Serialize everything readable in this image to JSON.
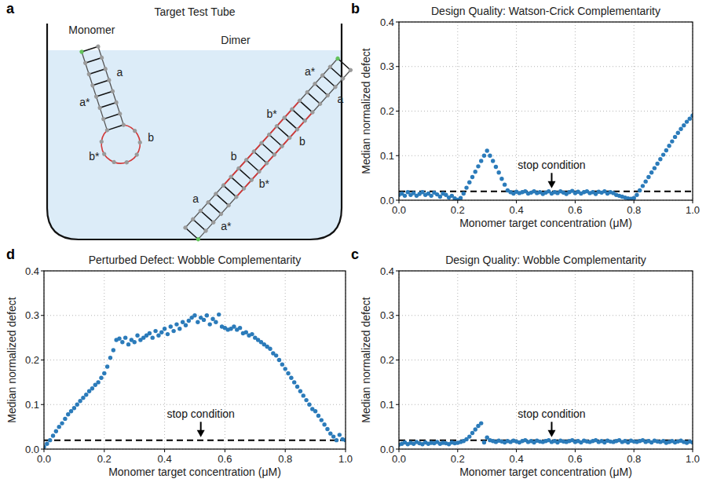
{
  "diagram": {
    "panel_label": "a",
    "title": "Target Test Tube",
    "monomer": {
      "label": "Monomer",
      "stem_labels": [
        "a*",
        "a"
      ],
      "loop_labels": [
        "b*",
        "b"
      ]
    },
    "dimer": {
      "label": "Dimer",
      "upper_labels": [
        "a",
        "b",
        "b*",
        "a*"
      ],
      "lower_labels": [
        "a*",
        "b*",
        "b",
        "a"
      ]
    }
  },
  "chart_data": [
    {
      "type": "scatter",
      "panel_label": "b",
      "title": "Design Quality: Watson-Crick Complementarity",
      "x_label": "Monomer target concentration (μM)",
      "y_label": "Median normalized defect",
      "x": [
        0,
        0.01,
        0.02,
        0.03,
        0.04,
        0.05,
        0.06,
        0.07,
        0.08,
        0.09,
        0.1,
        0.11,
        0.12,
        0.13,
        0.14,
        0.15,
        0.16,
        0.17,
        0.18,
        0.19,
        0.2,
        0.21,
        0.22,
        0.23,
        0.24,
        0.25,
        0.26,
        0.27,
        0.28,
        0.29,
        0.3,
        0.31,
        0.32,
        0.33,
        0.34,
        0.35,
        0.36,
        0.37,
        0.38,
        0.39,
        0.4,
        0.41,
        0.42,
        0.43,
        0.44,
        0.45,
        0.46,
        0.47,
        0.48,
        0.49,
        0.5,
        0.51,
        0.52,
        0.53,
        0.54,
        0.55,
        0.56,
        0.57,
        0.58,
        0.59,
        0.6,
        0.61,
        0.62,
        0.63,
        0.64,
        0.65,
        0.66,
        0.67,
        0.68,
        0.69,
        0.7,
        0.71,
        0.72,
        0.73,
        0.74,
        0.75,
        0.76,
        0.77,
        0.78,
        0.79,
        0.8,
        0.81,
        0.82,
        0.83,
        0.84,
        0.85,
        0.86,
        0.87,
        0.88,
        0.89,
        0.9,
        0.91,
        0.92,
        0.93,
        0.94,
        0.95,
        0.96,
        0.97,
        0.98,
        0.99,
        1
      ],
      "series": [
        {
          "color": "#2b7bba",
          "marker": "circle",
          "values": [
            0.012,
            0.015,
            0.01,
            0.018,
            0.012,
            0.016,
            0.01,
            0.014,
            0.018,
            0.012,
            0.015,
            0.01,
            0.017,
            0.013,
            0.008,
            0.015,
            0.012,
            0.006,
            0.01,
            0.004,
            0.001,
            0.005,
            0.015,
            0.028,
            0.04,
            0.052,
            0.064,
            0.076,
            0.088,
            0.1,
            0.111,
            0.1,
            0.088,
            0.075,
            0.062,
            0.048,
            0.035,
            0.022,
            0.018,
            0.015,
            0.019,
            0.016,
            0.018,
            0.02,
            0.015,
            0.017,
            0.02,
            0.016,
            0.018,
            0.014,
            0.017,
            0.02,
            0.015,
            0.018,
            0.016,
            0.02,
            0.017,
            0.014,
            0.018,
            0.021,
            0.016,
            0.019,
            0.015,
            0.018,
            0.02,
            0.016,
            0.018,
            0.014,
            0.019,
            0.017,
            0.02,
            0.015,
            0.018,
            0.016,
            0.012,
            0.01,
            0.008,
            0.006,
            0.004,
            0.003,
            0.005,
            0.012,
            0.022,
            0.032,
            0.042,
            0.052,
            0.062,
            0.072,
            0.082,
            0.092,
            0.102,
            0.112,
            0.122,
            0.132,
            0.142,
            0.151,
            0.16,
            0.168,
            0.176,
            0.183,
            0.19
          ]
        }
      ],
      "xlim": [
        0,
        1
      ],
      "ylim": [
        0,
        0.4
      ],
      "xticks": [
        {
          "value": 0,
          "label": "0.0"
        },
        0.2,
        0.4,
        0.6,
        0.8,
        {
          "value": 1,
          "label": "1.0"
        }
      ],
      "yticks": [
        {
          "value": 0,
          "label": "0.0"
        },
        0.1,
        0.2,
        0.3,
        0.4
      ],
      "grid": true,
      "reference_line": {
        "value": 0.02,
        "line_style": "dashed"
      },
      "annotations": [
        {
          "text": "stop condition",
          "x": 0.52,
          "y": 0.07
        }
      ]
    },
    {
      "type": "scatter",
      "panel_label": "c",
      "title": "Design Quality: Wobble Complementarity",
      "x_label": "Monomer target concentration (μM)",
      "y_label": "Median normalized defect",
      "x": [
        0,
        0.01,
        0.02,
        0.03,
        0.04,
        0.05,
        0.06,
        0.07,
        0.08,
        0.09,
        0.1,
        0.11,
        0.12,
        0.13,
        0.14,
        0.15,
        0.16,
        0.17,
        0.18,
        0.19,
        0.2,
        0.21,
        0.22,
        0.23,
        0.24,
        0.25,
        0.26,
        0.27,
        0.28,
        0.29,
        0.3,
        0.31,
        0.32,
        0.33,
        0.34,
        0.35,
        0.36,
        0.37,
        0.38,
        0.39,
        0.4,
        0.41,
        0.42,
        0.43,
        0.44,
        0.45,
        0.46,
        0.47,
        0.48,
        0.49,
        0.5,
        0.51,
        0.52,
        0.53,
        0.54,
        0.55,
        0.56,
        0.57,
        0.58,
        0.59,
        0.6,
        0.61,
        0.62,
        0.63,
        0.64,
        0.65,
        0.66,
        0.67,
        0.68,
        0.69,
        0.7,
        0.71,
        0.72,
        0.73,
        0.74,
        0.75,
        0.76,
        0.77,
        0.78,
        0.79,
        0.8,
        0.81,
        0.82,
        0.83,
        0.84,
        0.85,
        0.86,
        0.87,
        0.88,
        0.89,
        0.9,
        0.91,
        0.92,
        0.93,
        0.94,
        0.95,
        0.96,
        0.97,
        0.98,
        0.99,
        1
      ],
      "series": [
        {
          "color": "#2b7bba",
          "marker": "circle",
          "values": [
            0.01,
            0.012,
            0.015,
            0.011,
            0.014,
            0.012,
            0.016,
            0.013,
            0.011,
            0.015,
            0.012,
            0.014,
            0.013,
            0.016,
            0.012,
            0.014,
            0.013,
            0.011,
            0.015,
            0.013,
            0.014,
            0.016,
            0.018,
            0.022,
            0.028,
            0.036,
            0.044,
            0.052,
            0.058,
            0.015,
            0.026,
            0.02,
            0.018,
            0.016,
            0.019,
            0.017,
            0.015,
            0.018,
            0.016,
            0.019,
            0.017,
            0.015,
            0.018,
            0.02,
            0.016,
            0.018,
            0.015,
            0.019,
            0.017,
            0.016,
            0.018,
            0.02,
            0.016,
            0.018,
            0.015,
            0.019,
            0.017,
            0.016,
            0.018,
            0.02,
            0.016,
            0.018,
            0.015,
            0.019,
            0.017,
            0.016,
            0.018,
            0.02,
            0.016,
            0.018,
            0.015,
            0.019,
            0.017,
            0.016,
            0.018,
            0.02,
            0.016,
            0.018,
            0.015,
            0.019,
            0.017,
            0.016,
            0.018,
            0.02,
            0.016,
            0.018,
            0.015,
            0.019,
            0.017,
            0.016,
            0.018,
            0.014,
            0.016,
            0.018,
            0.015,
            0.017,
            0.019,
            0.016,
            0.014,
            0.017,
            0.015
          ]
        }
      ],
      "xlim": [
        0,
        1
      ],
      "ylim": [
        0,
        0.4
      ],
      "xticks": [
        {
          "value": 0,
          "label": "0.0"
        },
        0.2,
        0.4,
        0.6,
        0.8,
        {
          "value": 1,
          "label": "1.0"
        }
      ],
      "yticks": [
        {
          "value": 0,
          "label": "0.0"
        },
        0.1,
        0.2,
        0.3,
        0.4
      ],
      "grid": true,
      "reference_line": {
        "value": 0.02,
        "line_style": "dashed"
      },
      "annotations": [
        {
          "text": "stop condition",
          "x": 0.52,
          "y": 0.07
        }
      ]
    },
    {
      "type": "scatter",
      "panel_label": "d",
      "title": "Perturbed Defect: Wobble Complementarity",
      "x_label": "Monomer target concentration (μM)",
      "y_label": "Median normalized defect",
      "x": [
        0,
        0.01,
        0.02,
        0.03,
        0.04,
        0.05,
        0.06,
        0.07,
        0.08,
        0.09,
        0.1,
        0.11,
        0.12,
        0.13,
        0.14,
        0.15,
        0.16,
        0.17,
        0.18,
        0.19,
        0.2,
        0.21,
        0.22,
        0.23,
        0.24,
        0.25,
        0.26,
        0.27,
        0.28,
        0.29,
        0.3,
        0.31,
        0.32,
        0.33,
        0.34,
        0.35,
        0.36,
        0.37,
        0.38,
        0.39,
        0.4,
        0.41,
        0.42,
        0.43,
        0.44,
        0.45,
        0.46,
        0.47,
        0.48,
        0.49,
        0.5,
        0.51,
        0.52,
        0.53,
        0.54,
        0.55,
        0.56,
        0.57,
        0.58,
        0.59,
        0.6,
        0.61,
        0.62,
        0.63,
        0.64,
        0.65,
        0.66,
        0.67,
        0.68,
        0.69,
        0.7,
        0.71,
        0.72,
        0.73,
        0.74,
        0.75,
        0.76,
        0.77,
        0.78,
        0.79,
        0.8,
        0.81,
        0.82,
        0.83,
        0.84,
        0.85,
        0.86,
        0.87,
        0.88,
        0.89,
        0.9,
        0.91,
        0.92,
        0.93,
        0.94,
        0.95,
        0.96,
        0.97,
        0.98,
        0.99,
        1
      ],
      "series": [
        {
          "color": "#2b7bba",
          "marker": "circle",
          "values": [
            0.005,
            0.012,
            0.02,
            0.03,
            0.04,
            0.05,
            0.058,
            0.068,
            0.078,
            0.085,
            0.092,
            0.1,
            0.108,
            0.115,
            0.122,
            0.13,
            0.136,
            0.144,
            0.15,
            0.16,
            0.17,
            0.185,
            0.205,
            0.222,
            0.245,
            0.248,
            0.24,
            0.25,
            0.235,
            0.245,
            0.24,
            0.255,
            0.245,
            0.25,
            0.255,
            0.26,
            0.25,
            0.265,
            0.255,
            0.262,
            0.27,
            0.258,
            0.275,
            0.265,
            0.28,
            0.27,
            0.285,
            0.278,
            0.288,
            0.295,
            0.3,
            0.285,
            0.295,
            0.29,
            0.3,
            0.28,
            0.292,
            0.285,
            0.302,
            0.275,
            0.272,
            0.268,
            0.27,
            0.275,
            0.268,
            0.272,
            0.26,
            0.262,
            0.255,
            0.258,
            0.25,
            0.245,
            0.24,
            0.235,
            0.23,
            0.225,
            0.215,
            0.21,
            0.2,
            0.19,
            0.18,
            0.17,
            0.16,
            0.15,
            0.14,
            0.13,
            0.12,
            0.11,
            0.1,
            0.09,
            0.085,
            0.075,
            0.065,
            0.055,
            0.045,
            0.035,
            0.028,
            0.02,
            0.032,
            0.022,
            0.02
          ]
        }
      ],
      "xlim": [
        0,
        1
      ],
      "ylim": [
        0,
        0.4
      ],
      "xticks": [
        {
          "value": 0,
          "label": "0.0"
        },
        0.2,
        0.4,
        0.6,
        0.8,
        {
          "value": 1,
          "label": "1.0"
        }
      ],
      "yticks": [
        {
          "value": 0,
          "label": "0.0"
        },
        0.1,
        0.2,
        0.3,
        0.4
      ],
      "grid": true,
      "reference_line": {
        "value": 0.02,
        "line_style": "dashed"
      },
      "annotations": [
        {
          "text": "stop condition",
          "x": 0.52,
          "y": 0.07
        }
      ]
    }
  ]
}
